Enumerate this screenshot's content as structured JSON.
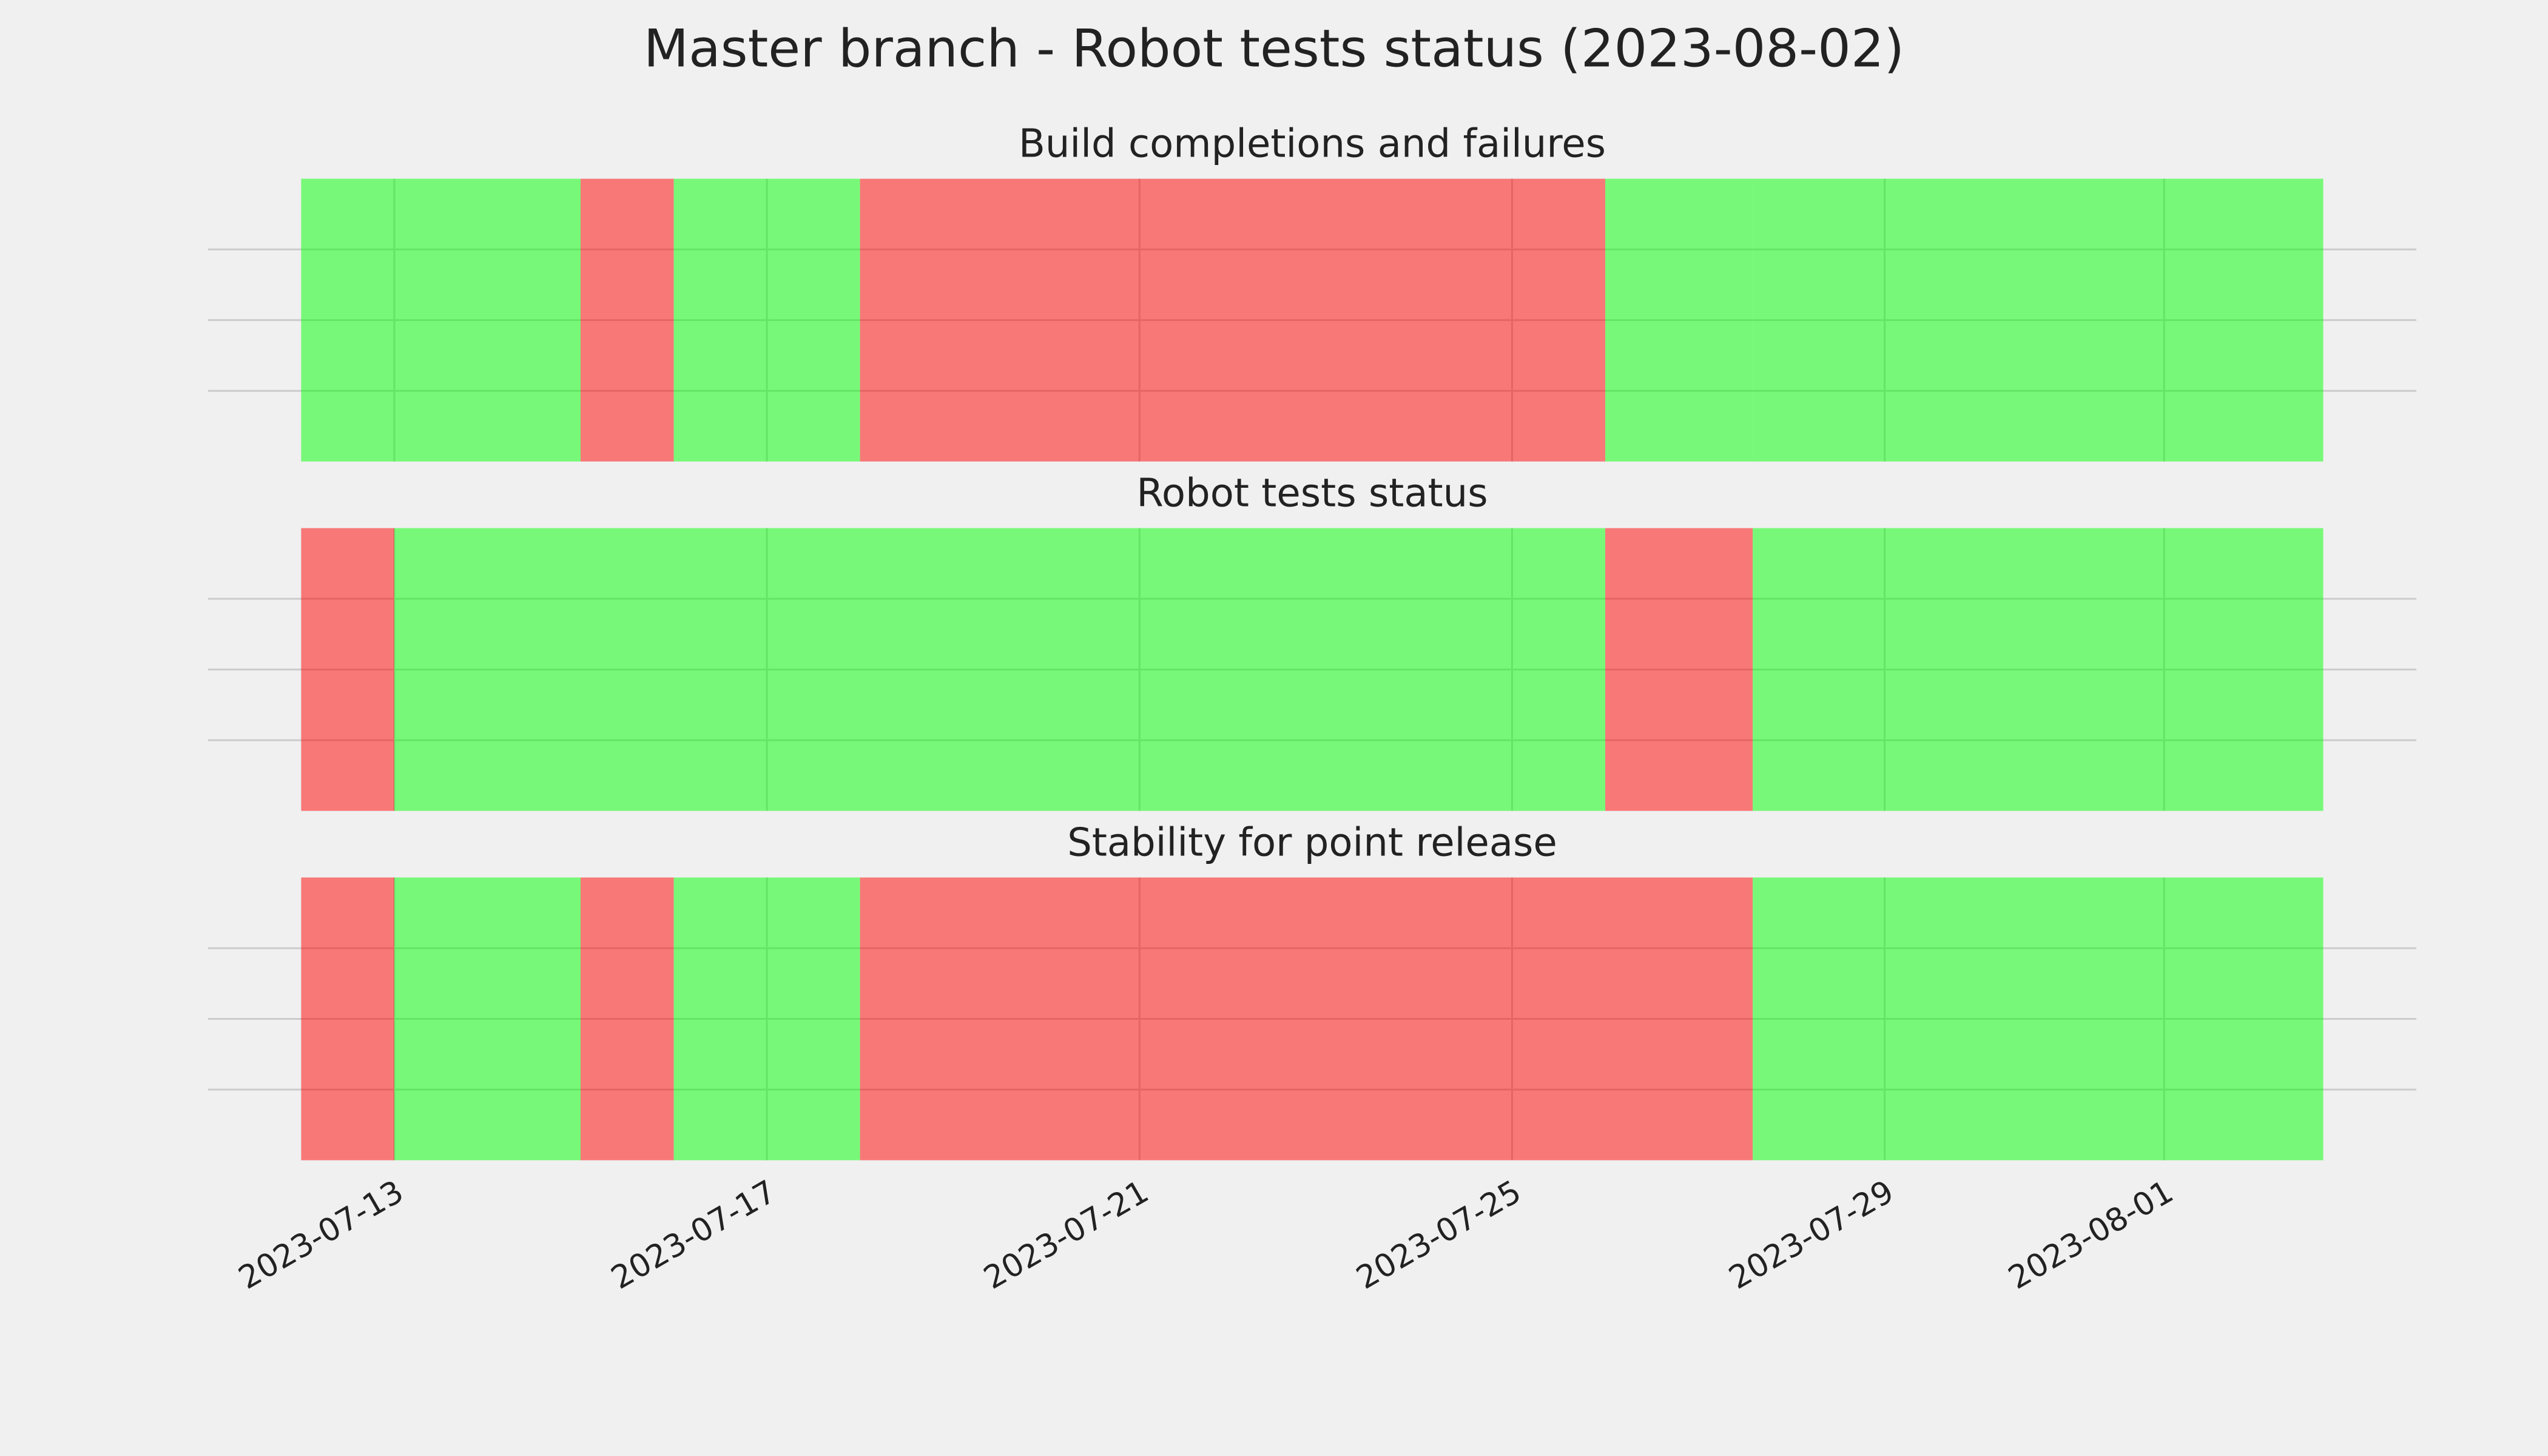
{
  "title": "Master branch - Robot tests status (2023-08-02)",
  "chart_data": [
    {
      "type": "timeline",
      "title": "Build completions and failures",
      "segments": [
        {
          "start": "2023-07-12",
          "end": "2023-07-15",
          "color": "#00ff00"
        },
        {
          "start": "2023-07-15",
          "end": "2023-07-16",
          "color": "#ff0000"
        },
        {
          "start": "2023-07-16",
          "end": "2023-07-18",
          "color": "#00ff00"
        },
        {
          "start": "2023-07-18",
          "end": "2023-07-26",
          "color": "#ff0000"
        },
        {
          "start": "2023-07-26",
          "end": "2023-07-27T14:00",
          "color": "#00ff00"
        },
        {
          "start": "2023-07-27T14:00",
          "end": "2023-08-02T17:00",
          "color": "#00ff00"
        }
      ],
      "alpha": 0.5,
      "xlim": [
        "2023-07-11",
        "2023-08-03T17:00"
      ],
      "xticks": [
        "2023-07-13",
        "2023-07-17",
        "2023-07-21",
        "2023-07-25",
        "2023-07-29",
        "2023-08-01"
      ],
      "ylim": [
        0,
        1
      ],
      "yticks": [
        0.25,
        0.5,
        0.75
      ],
      "grid": true
    },
    {
      "type": "timeline",
      "title": "Robot tests status",
      "segments": [
        {
          "start": "2023-07-12",
          "end": "2023-07-13",
          "color": "#ff0000"
        },
        {
          "start": "2023-07-13",
          "end": "2023-07-26",
          "color": "#00ff00"
        },
        {
          "start": "2023-07-26",
          "end": "2023-07-27T14:00",
          "color": "#ff0000"
        },
        {
          "start": "2023-07-27T14:00",
          "end": "2023-08-02T17:00",
          "color": "#00ff00"
        }
      ],
      "alpha": 0.5,
      "xlim": [
        "2023-07-11",
        "2023-08-03T17:00"
      ],
      "xticks": [
        "2023-07-13",
        "2023-07-17",
        "2023-07-21",
        "2023-07-25",
        "2023-07-29",
        "2023-08-01"
      ],
      "ylim": [
        0,
        1
      ],
      "yticks": [
        0.25,
        0.5,
        0.75
      ],
      "grid": true
    },
    {
      "type": "timeline",
      "title": "Stability for point release",
      "segments": [
        {
          "start": "2023-07-12",
          "end": "2023-07-13",
          "color": "#ff0000"
        },
        {
          "start": "2023-07-13",
          "end": "2023-07-15",
          "color": "#00ff00"
        },
        {
          "start": "2023-07-15",
          "end": "2023-07-16",
          "color": "#ff0000"
        },
        {
          "start": "2023-07-16",
          "end": "2023-07-18",
          "color": "#00ff00"
        },
        {
          "start": "2023-07-18",
          "end": "2023-07-27T14:00",
          "color": "#ff0000"
        },
        {
          "start": "2023-07-27T14:00",
          "end": "2023-08-02T17:00",
          "color": "#00ff00"
        }
      ],
      "alpha": 0.5,
      "xlim": [
        "2023-07-11",
        "2023-08-03T17:00"
      ],
      "xticks": [
        "2023-07-13",
        "2023-07-17",
        "2023-07-21",
        "2023-07-25",
        "2023-07-29",
        "2023-08-01"
      ],
      "ylim": [
        0,
        1
      ],
      "yticks": [
        0.25,
        0.5,
        0.75
      ],
      "grid": true
    }
  ]
}
